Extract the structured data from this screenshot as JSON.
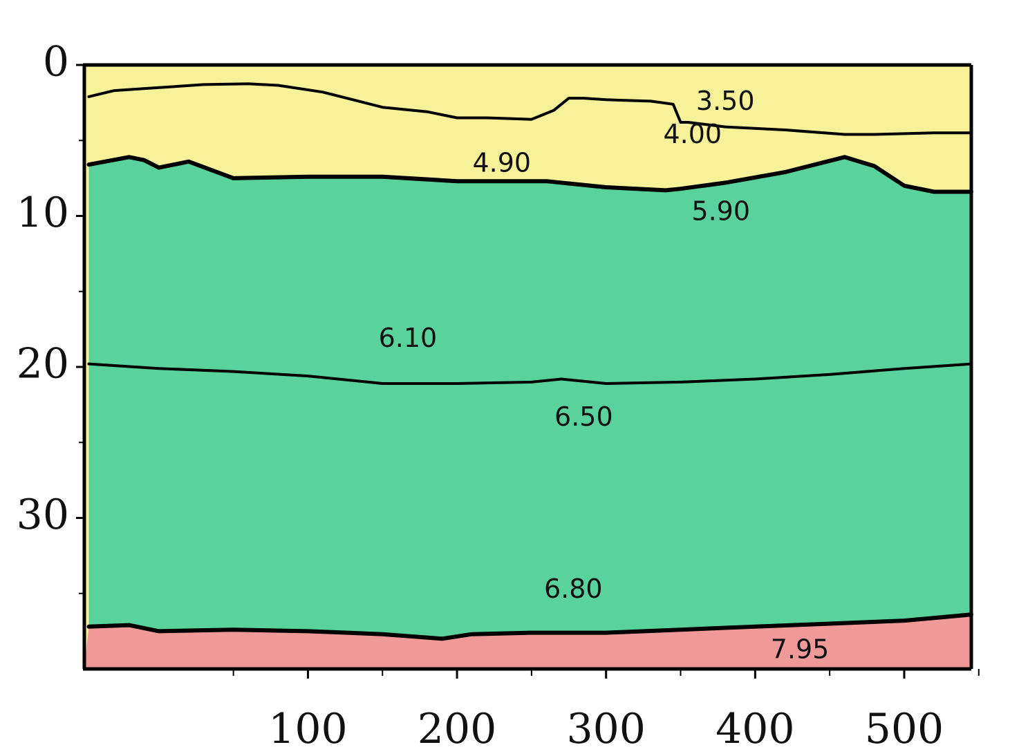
{
  "chart_data": {
    "type": "area",
    "title": "",
    "xlabel": "",
    "ylabel": "",
    "xlim": [
      -50,
      545
    ],
    "ylim": [
      0,
      40
    ],
    "y_inverted": true,
    "grid": false,
    "legend": "none",
    "x_tick_labels": [
      "100",
      "200",
      "300",
      "400",
      "500"
    ],
    "x_tick_values": [
      100,
      200,
      300,
      400,
      500
    ],
    "x_minor_ticks": [
      50,
      150,
      250,
      350,
      450,
      550
    ],
    "y_tick_labels": [
      "0",
      "10",
      "20",
      "30"
    ],
    "y_tick_values": [
      0,
      10,
      20,
      30
    ],
    "y_minor_ticks": [
      5,
      15,
      25,
      35
    ],
    "zone_colors": {
      "top": "#f7f19a",
      "middle": "#59d29e",
      "bottom": "#ef9a98"
    },
    "boundaries": [
      {
        "weight": "thin",
        "x": [
          -47,
          -30,
          0,
          30,
          60,
          80,
          110,
          150,
          180,
          200,
          220,
          250,
          265,
          275,
          285,
          300,
          330,
          345,
          350,
          355,
          380,
          420,
          460,
          480,
          520,
          545
        ],
        "y": [
          2.1,
          1.7,
          1.5,
          1.3,
          1.25,
          1.35,
          1.8,
          2.8,
          3.1,
          3.5,
          3.5,
          3.6,
          3.0,
          2.2,
          2.2,
          2.3,
          2.4,
          2.6,
          3.8,
          3.8,
          4.1,
          4.3,
          4.6,
          4.6,
          4.5,
          4.5
        ]
      },
      {
        "weight": "thick",
        "x": [
          -47,
          -20,
          -10,
          0,
          20,
          50,
          100,
          150,
          200,
          230,
          260,
          300,
          340,
          350,
          380,
          420,
          460,
          480,
          500,
          520,
          545
        ],
        "y": [
          6.6,
          6.1,
          6.3,
          6.8,
          6.4,
          7.5,
          7.4,
          7.4,
          7.7,
          7.7,
          7.7,
          8.1,
          8.3,
          8.2,
          7.8,
          7.1,
          6.1,
          6.7,
          8.0,
          8.4,
          8.4
        ]
      },
      {
        "weight": "thin",
        "x": [
          -47,
          0,
          50,
          100,
          150,
          200,
          250,
          270,
          300,
          350,
          400,
          450,
          500,
          545
        ],
        "y": [
          19.8,
          20.1,
          20.3,
          20.6,
          21.1,
          21.1,
          21.0,
          20.8,
          21.1,
          21.0,
          20.8,
          20.5,
          20.1,
          19.8
        ]
      },
      {
        "weight": "thick",
        "x": [
          -47,
          -20,
          0,
          50,
          100,
          150,
          190,
          210,
          250,
          300,
          350,
          400,
          450,
          500,
          545
        ],
        "y": [
          37.2,
          37.1,
          37.5,
          37.4,
          37.5,
          37.7,
          38.0,
          37.7,
          37.6,
          37.6,
          37.4,
          37.2,
          37.0,
          36.8,
          36.4
        ]
      }
    ],
    "labels": [
      {
        "text": "3.50",
        "x": 380,
        "y": 2.5
      },
      {
        "text": "4.00",
        "x": 358,
        "y": 4.7
      },
      {
        "text": "4.90",
        "x": 230,
        "y": 6.6
      },
      {
        "text": "5.90",
        "x": 377,
        "y": 9.8
      },
      {
        "text": "6.10",
        "x": 167,
        "y": 18.2
      },
      {
        "text": "6.50",
        "x": 285,
        "y": 23.4
      },
      {
        "text": "6.80",
        "x": 278,
        "y": 34.8
      },
      {
        "text": "7.95",
        "x": 430,
        "y": 38.8
      }
    ]
  }
}
